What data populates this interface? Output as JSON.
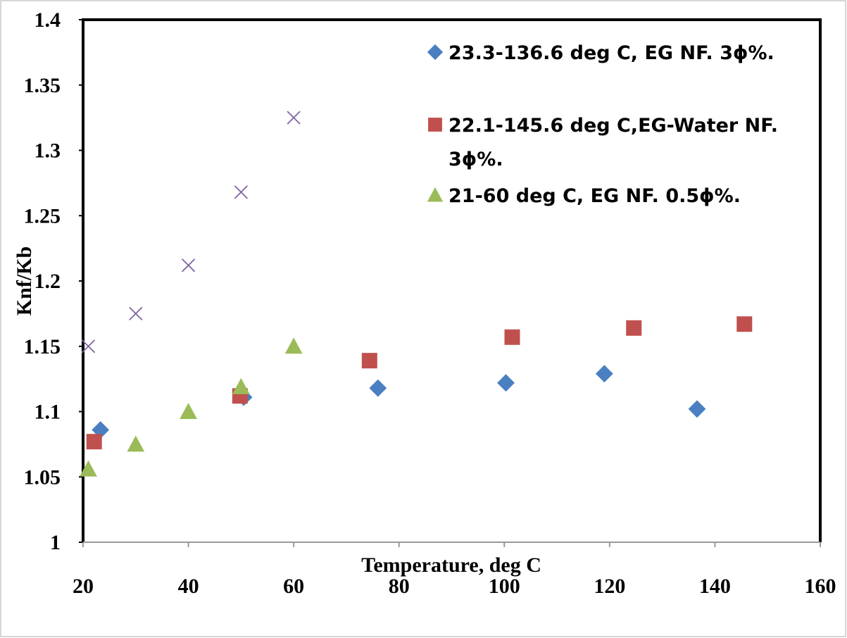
{
  "chart_data": {
    "type": "scatter",
    "title": "",
    "xlabel": "Temperature, deg C",
    "ylabel": "Knf/Kb",
    "xlim": [
      20,
      160
    ],
    "ylim": [
      1,
      1.4
    ],
    "xticks": [
      "20",
      "40",
      "60",
      "80",
      "100",
      "120",
      "140",
      "160"
    ],
    "yticks": [
      "1",
      "1.05",
      "1.1",
      "1.15",
      "1.2",
      "1.25",
      "1.3",
      "1.35",
      "1.4"
    ],
    "grid": false,
    "legend_position": "top-right",
    "series": [
      {
        "name": "23.3-136.6 deg C, EG NF. 3ϕ%.",
        "legend_lines": [
          "23.3-136.6 deg C, EG NF. 3ϕ%."
        ],
        "marker": "diamond",
        "color": "#4a7fc1",
        "x": [
          23.3,
          50.5,
          76,
          100.3,
          119,
          136.6
        ],
        "y": [
          1.086,
          1.111,
          1.118,
          1.122,
          1.129,
          1.102
        ]
      },
      {
        "name": "22.1-145.6 deg C,EG-Water NF. 3ϕ%.",
        "legend_lines": [
          "22.1-145.6 deg C,EG-Water NF.",
          "3ϕ%."
        ],
        "marker": "square",
        "color": "#c0504d",
        "x": [
          22.1,
          49.8,
          74.4,
          101.5,
          124.6,
          145.6
        ],
        "y": [
          1.077,
          1.112,
          1.139,
          1.157,
          1.164,
          1.167
        ]
      },
      {
        "name": "21-60 deg C, EG NF. 0.5ϕ%.",
        "legend_lines": [
          "21-60 deg C, EG NF. 0.5ϕ%."
        ],
        "marker": "triangle",
        "color": "#9bbb59",
        "x": [
          21,
          30,
          40,
          50,
          60
        ],
        "y": [
          1.056,
          1.075,
          1.1,
          1.119,
          1.15
        ]
      },
      {
        "marker": "cross",
        "color": "#7f64a0",
        "x": [
          21,
          30,
          40,
          50,
          60
        ],
        "y": [
          1.15,
          1.175,
          1.212,
          1.268,
          1.325
        ]
      }
    ]
  }
}
